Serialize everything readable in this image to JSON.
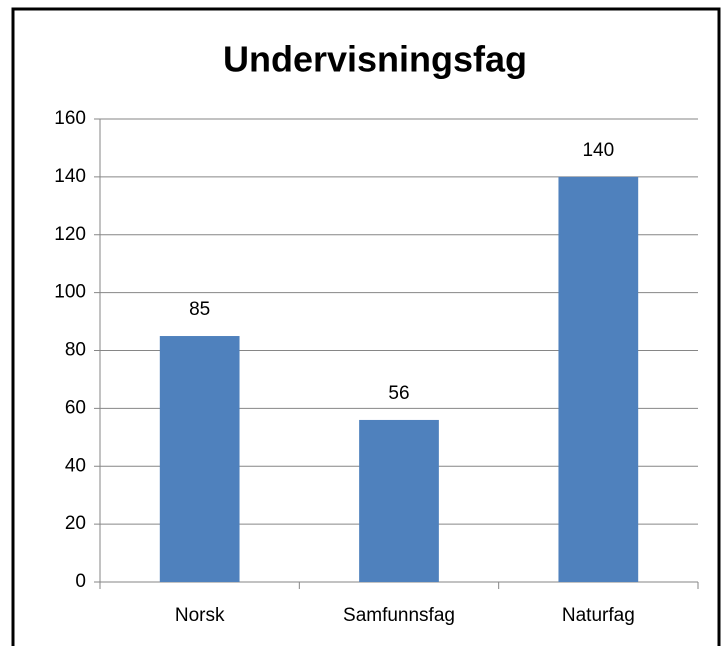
{
  "chart_data": {
    "type": "bar",
    "title": "Undervisningsfag",
    "categories": [
      "Norsk",
      "Samfunnsfag",
      "Naturfag"
    ],
    "values": [
      85,
      56,
      140
    ],
    "color": "#4f81bd",
    "ylim": [
      0,
      160
    ],
    "yticks": [
      0,
      20,
      40,
      60,
      80,
      100,
      120,
      140,
      160
    ],
    "grid": true
  }
}
